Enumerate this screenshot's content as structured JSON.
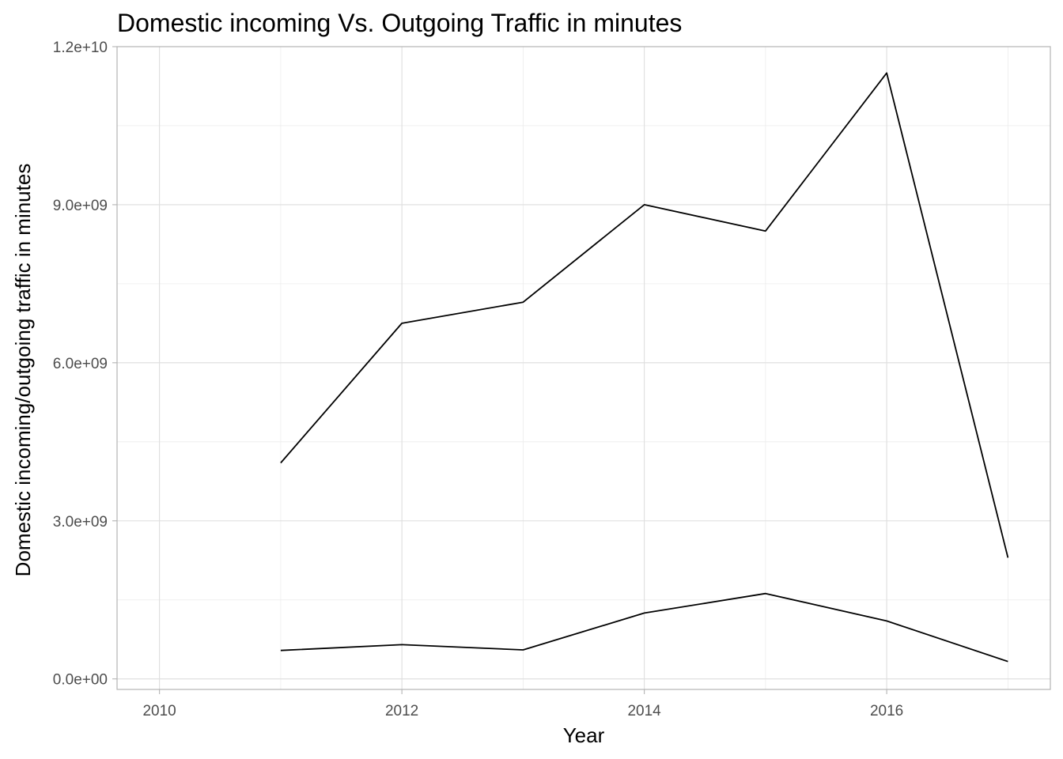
{
  "chart_data": {
    "type": "line",
    "title": "Domestic incoming Vs. Outgoing Traffic in minutes",
    "xlabel": "Year",
    "ylabel": "Domestic incoming/outgoing traffic in minutes",
    "xlim": [
      2009.65,
      2017.35
    ],
    "ylim": [
      -200000000,
      12000000000
    ],
    "x_ticks": [
      2010,
      2012,
      2014,
      2016
    ],
    "x_tick_labels": [
      "2010",
      "2012",
      "2014",
      "2016"
    ],
    "y_ticks": [
      0,
      3000000000,
      6000000000,
      9000000000,
      12000000000
    ],
    "y_tick_labels": [
      "0.0e+00",
      "3.0e+09",
      "6.0e+09",
      "9.0e+09",
      "1.2e+10"
    ],
    "grid": true,
    "series": [
      {
        "x": [
          2011,
          2012,
          2013,
          2014,
          2015,
          2016,
          2017
        ],
        "values": [
          4100000000,
          6750000000,
          7150000000,
          9000000000,
          8500000000,
          11500000000,
          2300000000
        ]
      },
      {
        "x": [
          2011,
          2012,
          2013,
          2014,
          2015,
          2016,
          2017
        ],
        "values": [
          540000000,
          650000000,
          550000000,
          1250000000,
          1620000000,
          1100000000,
          330000000
        ]
      }
    ],
    "colors": {
      "line": "#000000",
      "grid": "#dedede",
      "panel_border": "#b3b3b3",
      "tick_label": "#4d4d4d"
    }
  }
}
